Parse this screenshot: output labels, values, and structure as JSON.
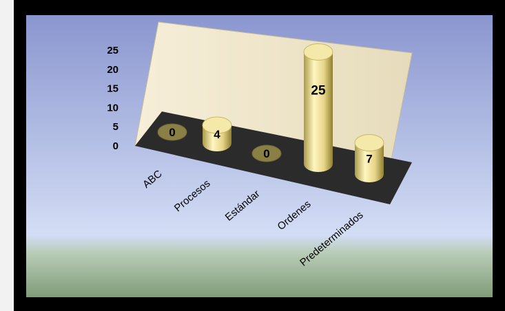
{
  "chart_data": {
    "type": "bar",
    "categories": [
      "ABC",
      "Procesos",
      "Estándar",
      "Ordenes",
      "Predeterminados"
    ],
    "values": [
      0,
      4,
      0,
      25,
      7
    ],
    "ylim": [
      0,
      25
    ],
    "yticks": [
      0,
      5,
      10,
      15,
      20,
      25
    ],
    "show_data_labels": true,
    "bar_color": "#e8d98a",
    "floor_color": "#2b2b2b",
    "wall_color": "#efe6cc",
    "background_top": "#8a96cf",
    "background_bottom": "#7f9c78"
  }
}
